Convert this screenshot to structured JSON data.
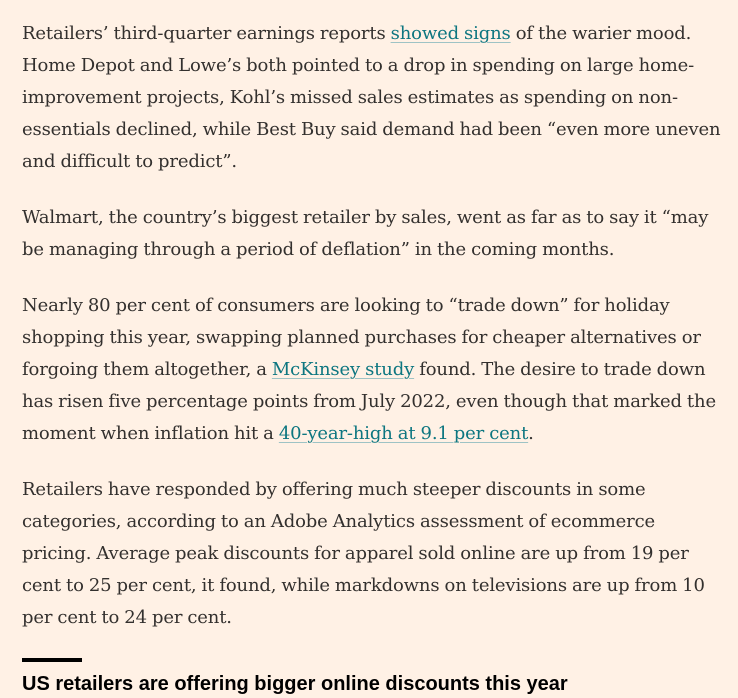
{
  "article": {
    "p1": {
      "a": "Retailers’ third-quarter earnings reports ",
      "link": "showed signs",
      "b": " of the warier mood. Home Depot and Lowe’s both pointed to a drop in spending on large home-improvement projects, Kohl’s missed sales estimates as spending on non-essentials declined, while Best Buy said demand had been “even more uneven and difficult to predict”."
    },
    "p2": {
      "text": "Walmart, the country’s biggest retailer by sales, went as far as to say it “may be managing through a period of deflation” in the coming months."
    },
    "p3": {
      "a": "Nearly 80 per cent of consumers are looking to “trade down” for holiday shopping this year, swapping planned purchases for cheaper alternatives or forgoing them altogether, a ",
      "link1": "McKinsey study",
      "b": " found. The desire to trade down has risen five percentage points from July 2022, even though that marked the moment when inflation hit a ",
      "link2": "40-year-high at 9.1 per cent",
      "c": "."
    },
    "p4": {
      "text": "Retailers have responded by offering much steeper discounts in some categories, according to an Adobe Analytics assessment of ecommerce pricing. Average peak discounts for apparel sold online are up from 19 per cent to 25 per cent, it found, while markdowns on televisions are up from 10 per cent to 24 per cent."
    }
  },
  "chart": {
    "title": "US retailers are offering bigger online discounts this year"
  },
  "colors": {
    "background": "#fff1e5",
    "text": "#33302e",
    "link": "#0d7680"
  }
}
